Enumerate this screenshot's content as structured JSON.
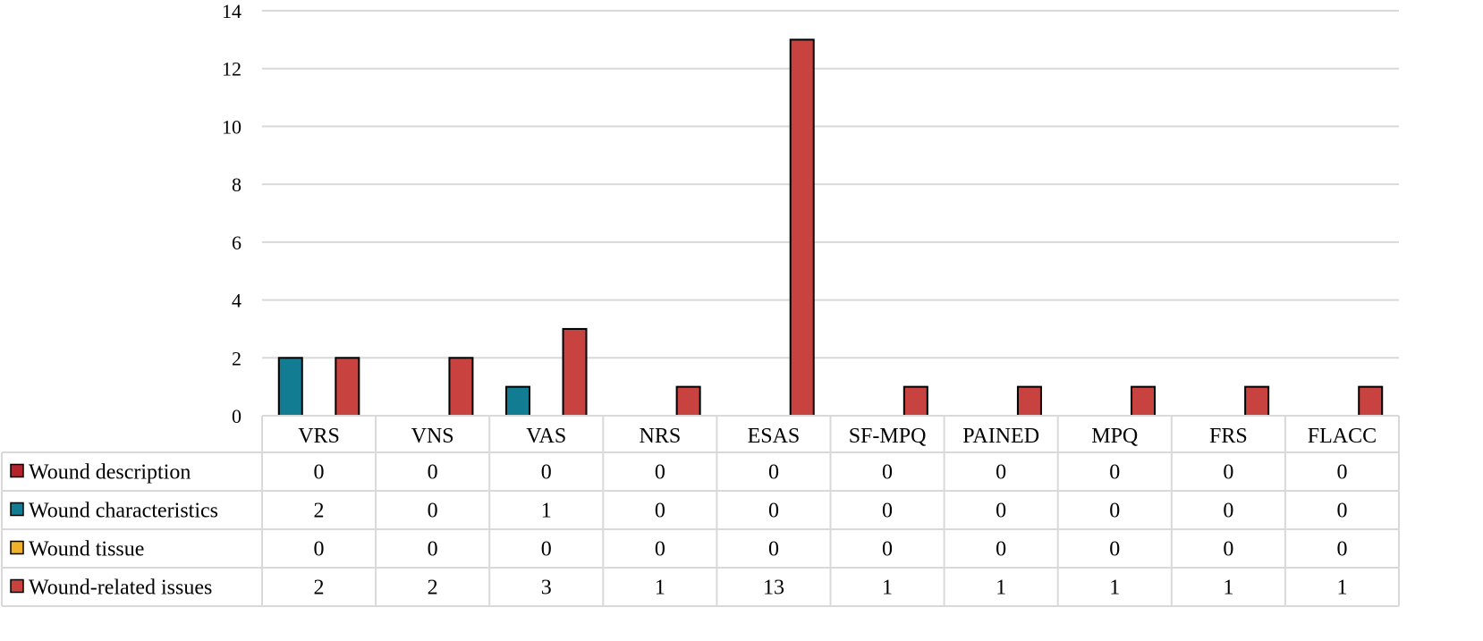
{
  "chart_data": {
    "type": "bar",
    "categories": [
      "VRS",
      "VNS",
      "VAS",
      "NRS",
      "ESAS",
      "SF-MPQ",
      "PAINED",
      "MPQ",
      "FRS",
      "FLACC"
    ],
    "ylim": [
      0,
      14
    ],
    "yticks": [
      "0",
      "2",
      "4",
      "6",
      "8",
      "10",
      "12",
      "14"
    ],
    "grid": true,
    "legend": "data-table",
    "series": [
      {
        "name": "Wound description",
        "color": "#b5242d",
        "values": [
          0,
          0,
          0,
          0,
          0,
          0,
          0,
          0,
          0,
          0
        ]
      },
      {
        "name": "Wound characteristics",
        "color": "#127c93",
        "values": [
          2,
          0,
          1,
          0,
          0,
          0,
          0,
          0,
          0,
          0
        ]
      },
      {
        "name": "Wound tissue",
        "color": "#f0b22a",
        "values": [
          0,
          0,
          0,
          0,
          0,
          0,
          0,
          0,
          0,
          0
        ]
      },
      {
        "name": "Wound-related issues",
        "color": "#c8423f",
        "values": [
          2,
          2,
          3,
          1,
          13,
          1,
          1,
          1,
          1,
          1
        ]
      }
    ]
  }
}
